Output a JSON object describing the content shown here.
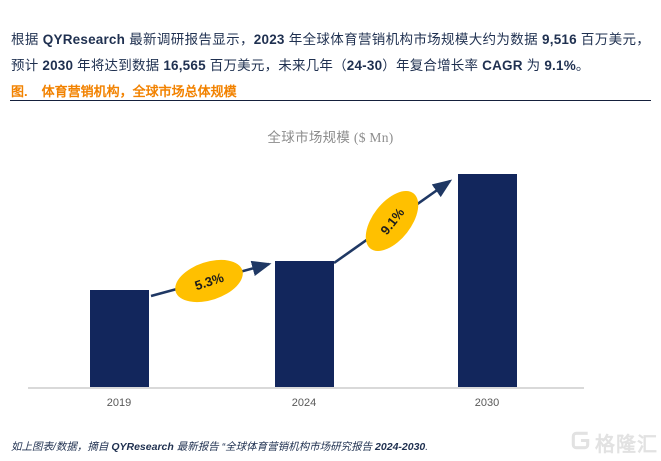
{
  "intro_paragraph": {
    "segments": [
      {
        "text": "根据 "
      },
      {
        "text": "QYResearch",
        "bold": true
      },
      {
        "text": " 最新调研报告显示，"
      },
      {
        "text": "2023",
        "bold": true
      },
      {
        "text": " 年全球体育营销机构市场规模大约为数据 "
      },
      {
        "text": "9,516",
        "bold": true
      },
      {
        "text": " 百万美元，预计 "
      },
      {
        "text": "2030",
        "bold": true
      },
      {
        "text": " 年将达到数据 "
      },
      {
        "text": "16,565",
        "bold": true
      },
      {
        "text": " 百万美元，未来几年（"
      },
      {
        "text": "24-30",
        "bold": true
      },
      {
        "text": "）年复合增长率 "
      },
      {
        "text": "CAGR",
        "bold": true
      },
      {
        "text": " 为 "
      },
      {
        "text": "9.1%",
        "bold": true
      },
      {
        "text": "。"
      }
    ]
  },
  "figure_heading": {
    "label": "图.",
    "title": "体育营销机构，全球市场总体规模",
    "color": "#F28200"
  },
  "chart_data": {
    "type": "bar",
    "title": "全球市场规模 ($ Mn)",
    "categories": [
      "2019",
      "2024",
      "2030"
    ],
    "values": [
      7580,
      9820,
      16565
    ],
    "ylabel": "$ Mn",
    "ylim": [
      0,
      16565
    ],
    "grid": false,
    "legend": "none",
    "bar_color": "#12265C",
    "arrow_color": "#1F3864",
    "annotation_fill": "#FFC000",
    "axis_line_color": "#D9D9D9",
    "tick_label_color": "#595959",
    "title_color": "#8C8C8C",
    "annotations": [
      {
        "label": "5.3%",
        "between": [
          "2019",
          "2024"
        ]
      },
      {
        "label": "9.1%",
        "between": [
          "2024",
          "2030"
        ]
      }
    ]
  },
  "source_note": {
    "segments": [
      {
        "text": "如上图表/数据，摘自 "
      },
      {
        "text": "QYResearch",
        "bold": true
      },
      {
        "text": " 最新报告 “全球体育营销机构市场研究报告 "
      },
      {
        "text": "2024-2030",
        "bold": true
      },
      {
        "text": "."
      }
    ]
  },
  "watermark": {
    "text": "格隆汇"
  }
}
